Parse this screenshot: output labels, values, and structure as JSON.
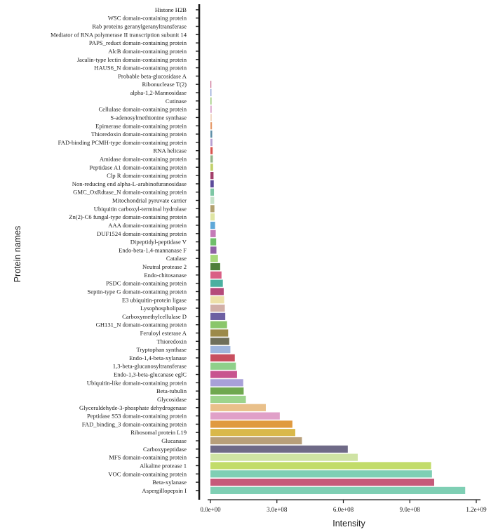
{
  "chart_data": {
    "type": "bar",
    "orientation": "horizontal",
    "xlabel": "Intensity",
    "ylabel": "Protein names",
    "xlim": [
      0,
      1200000000
    ],
    "x_ticks": [
      0,
      300000000,
      600000000,
      900000000,
      1200000000
    ],
    "x_tick_labels": [
      "0.0e+00",
      "3.0e+08",
      "6.0e+08",
      "9.0e+08",
      "1.2e+09"
    ],
    "grid": false,
    "legend": "none",
    "categories": [
      "Histone H2B",
      "WSC domain-containing protein",
      "Rab proteins geranylgeranyltransferase",
      "Mediator of RNA polymerase II transcription subunit 14",
      "PAPS_reduct domain-containing protein",
      "AlcB domain-containing protein",
      "Jacalin-type lectin domain-containing protein",
      "HAUS6_N domain-containing protein",
      "Probable beta-glucosidase A",
      "Ribonuclease T(2)",
      "alpha-1,2-Mannosidase",
      "Cutinase",
      "Cellulase domain-containing protein",
      "S-adenosylmethionine synthase",
      "Epimerase domain-containing protein",
      "Thioredoxin domain-containing protein",
      "FAD-binding PCMH-type domain-containing protein",
      "RNA helicase",
      "Amidase domain-containing protein",
      "Peptidase A1 domain-containing protein",
      "Clp R domain-containing protein",
      "Non-reducing end alpha-L-arabinofuranosidase",
      "GMC_OxRdtase_N domain-containing protein",
      "Mitochondrial pyruvate carrier",
      "Ubiquitin carboxyl-terminal hydrolase",
      "Zn(2)-C6 fungal-type domain-containing protein",
      "AAA domain-containing protein",
      "DUF1524 domain-containing protein",
      "Dipeptidyl-peptidase V",
      "Endo-beta-1,4-mannanase F",
      "Catalase",
      "Neutral protease 2",
      "Endo-chitosanase",
      "PSDC domain-containing protein",
      "Septin-type G domain-containing protein",
      "E3 ubiquitin-protein ligase",
      "Lysophospholipase",
      "Carboxymethylcellulase D",
      "GH131_N domain-containing protein",
      "Feruloyl esterase A",
      "Thioredoxin",
      "Tryptophan synthase",
      "Endo-1,4-beta-xylanase",
      "1,3-beta-glucanosyltransferase",
      "Endo-1,3-beta-glucanase eglC",
      "Ubiquitin-like domain-containing protein",
      "Beta-tubulin",
      "Glycosidase",
      "Glyceraldehyde-3-phosphate dehydrogenase",
      "Peptidase S53 domain-containing protein",
      "FAD_binding_3 domain-containing protein",
      "Ribosomal protein L19",
      "Glucanase",
      "Carboxypeptidase",
      "MFS domain-containing protein",
      "Alkaline protease 1",
      "VOC domain-containing protein",
      "Beta-xylanase",
      "Aspergillopepsin I"
    ],
    "values": [
      0,
      0,
      0,
      0,
      0,
      0,
      0,
      0,
      0,
      4000000,
      4500000,
      5000000,
      5500000,
      6000000,
      7000000,
      8000000,
      9000000,
      10000000,
      11000000,
      12000000,
      14000000,
      15000000,
      16000000,
      17000000,
      18000000,
      19000000,
      21000000,
      24000000,
      26000000,
      27000000,
      34000000,
      44000000,
      50000000,
      56000000,
      60000000,
      62000000,
      65000000,
      67000000,
      75000000,
      80000000,
      85000000,
      90000000,
      110000000,
      115000000,
      120000000,
      148000000,
      150000000,
      160000000,
      250000000,
      313000000,
      370000000,
      383000000,
      413000000,
      620000000,
      665000000,
      996000000,
      1000000000,
      1010000000,
      1150000000
    ],
    "colors": [
      "#e9a3b6",
      "#7a4a93",
      "#d4c6e4",
      "#6a8f45",
      "#e4d0a2",
      "#d07b8f",
      "#5ab0a0",
      "#ffffff",
      "#ffffff",
      "#c96b8f",
      "#8fa3d6",
      "#9cc97a",
      "#d9a1c9",
      "#f0d6c0",
      "#e59a6a",
      "#5f8fa8",
      "#b7a0d2",
      "#d9544f",
      "#93b58a",
      "#c2d06a",
      "#a23f6a",
      "#5b4b9a",
      "#7ec7a5",
      "#c6e2c9",
      "#b2a06f",
      "#dfe5a3",
      "#5fa8d8",
      "#c47ab7",
      "#6fbf6a",
      "#8f62a5",
      "#a8d97a",
      "#4f7f3a",
      "#d95f85",
      "#4bb0a0",
      "#b54a7a",
      "#ede0a8",
      "#d2b0a8",
      "#6d5fa2",
      "#8ac66a",
      "#9c8a4a",
      "#6f6f5a",
      "#9fb6dd",
      "#c84f5f",
      "#8fd08a",
      "#c8548f",
      "#a8a0d8",
      "#6fa84f",
      "#9dd48c",
      "#e9c08a",
      "#e0a0c8",
      "#e09a3f",
      "#d9b84a",
      "#b89f7a",
      "#6f6a87",
      "#cfe3a4",
      "#c2dc6a",
      "#7fcfb4",
      "#c65a7a",
      "#7fcfb4"
    ]
  }
}
